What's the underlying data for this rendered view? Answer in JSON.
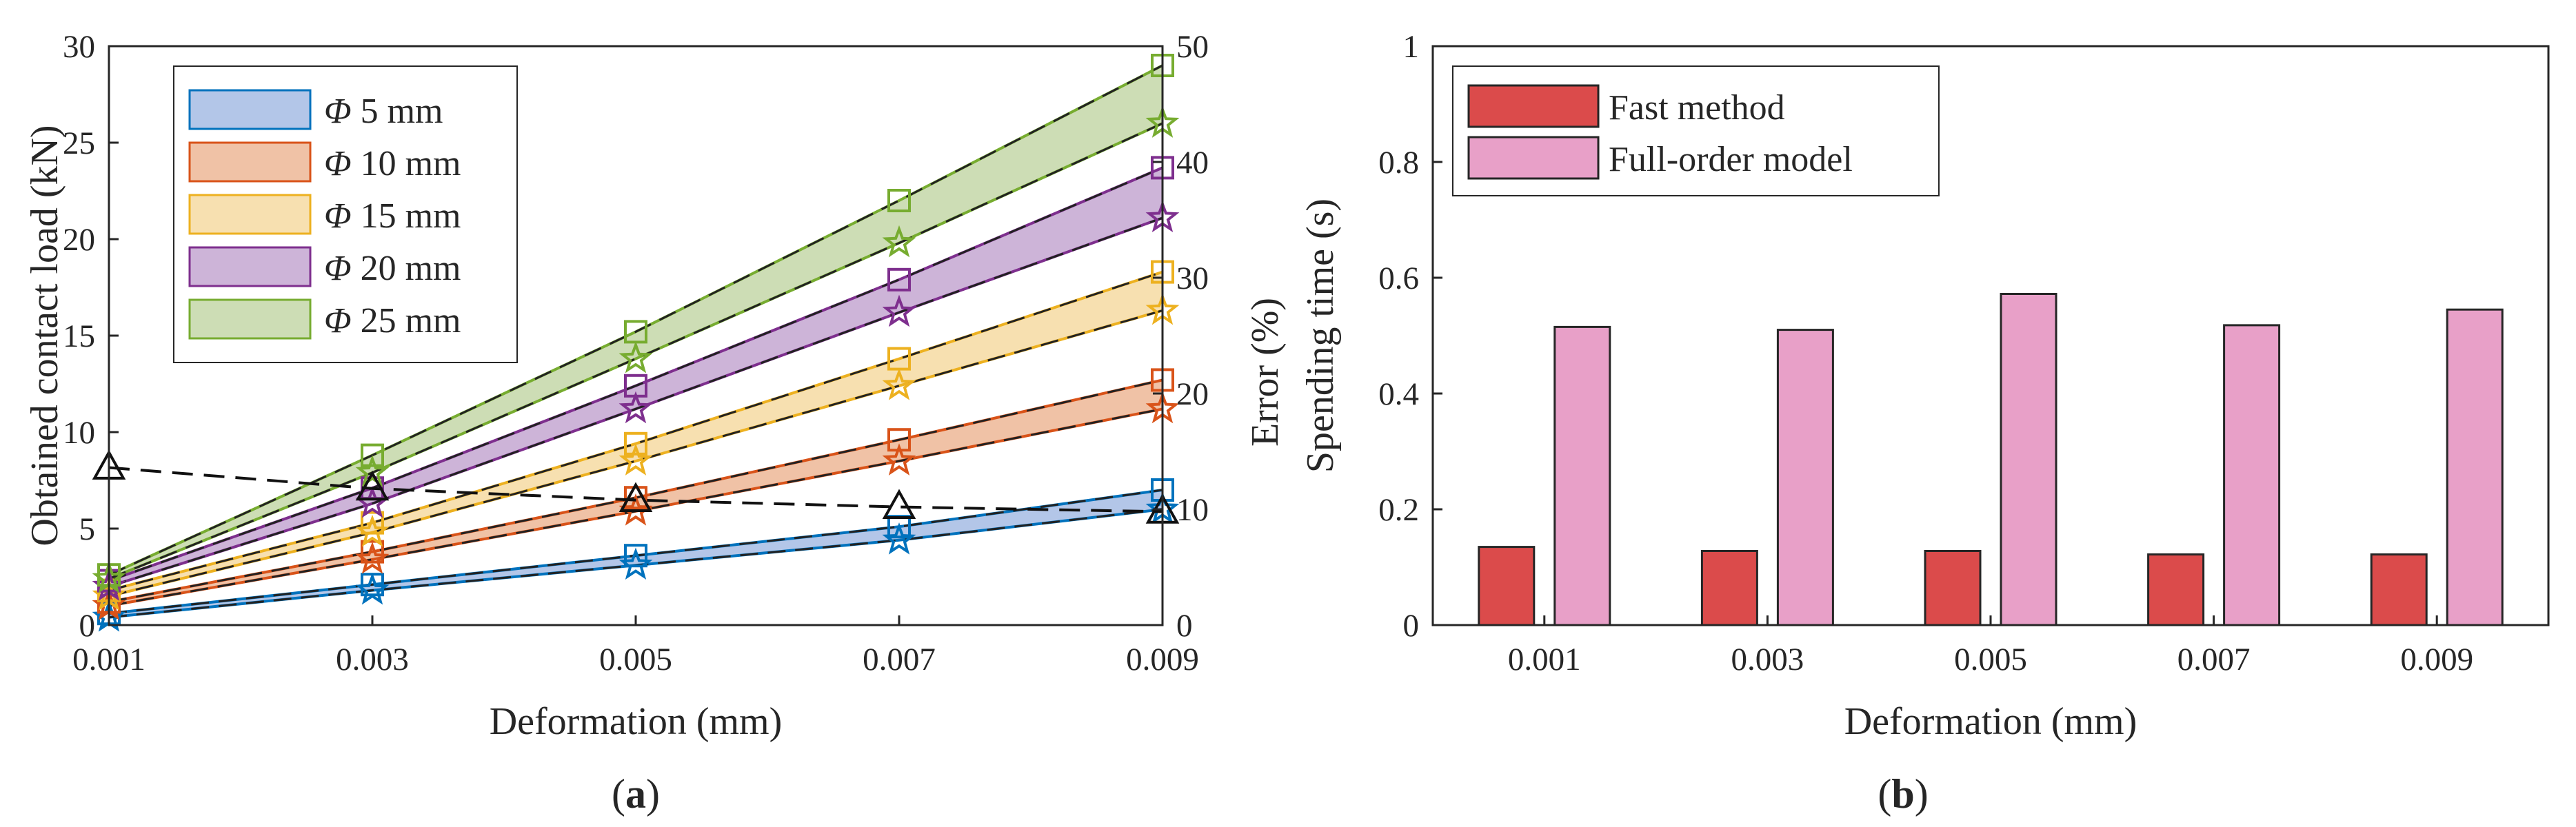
{
  "chart_data": [
    {
      "panel": "(a)",
      "type": "line",
      "xlabel": "Deformation (mm)",
      "ylabel": "Obtained contact load (kN)",
      "y2label": "",
      "x": [
        0.001,
        0.003,
        0.005,
        0.007,
        0.009
      ],
      "x_tick_labels": [
        "0.001",
        "0.003",
        "0.005",
        "0.007",
        "0.009"
      ],
      "ylim": [
        0,
        30
      ],
      "y_ticks": [
        0,
        5,
        10,
        15,
        20,
        25,
        30
      ],
      "y2lim": [
        0,
        50
      ],
      "y2_ticks": [
        0,
        10,
        20,
        30,
        40,
        50
      ],
      "legend_position": "top-left",
      "bands": [
        {
          "name": "Φ 5 mm",
          "symbol": "Φ",
          "size": " 5 mm",
          "color": "#0072BD",
          "fill": "#b3c6e8",
          "upper": [
            0.6,
            2.1,
            3.6,
            5.1,
            7.0
          ],
          "lower": [
            0.4,
            1.8,
            3.1,
            4.4,
            6.0
          ]
        },
        {
          "name": "Φ 10 mm",
          "symbol": "Φ",
          "size": " 10 mm",
          "color": "#D95319",
          "fill": "#f0c2a6",
          "upper": [
            1.2,
            3.8,
            6.6,
            9.6,
            12.7
          ],
          "lower": [
            1.0,
            3.4,
            5.9,
            8.5,
            11.2
          ]
        },
        {
          "name": "Φ 15 mm",
          "symbol": "Φ",
          "size": " 15 mm",
          "color": "#EDB120",
          "fill": "#f7e0b0",
          "upper": [
            1.8,
            5.3,
            9.4,
            13.8,
            18.3
          ],
          "lower": [
            1.5,
            4.8,
            8.5,
            12.4,
            16.3
          ]
        },
        {
          "name": "Φ 20 mm",
          "symbol": "Φ",
          "size": " 20 mm",
          "color": "#7E2F8E",
          "fill": "#cdb4d8",
          "upper": [
            2.3,
            7.1,
            12.4,
            17.9,
            23.7
          ],
          "lower": [
            2.0,
            6.3,
            11.2,
            16.2,
            21.1
          ]
        },
        {
          "name": "Φ 25 mm",
          "symbol": "Φ",
          "size": " 25 mm",
          "color": "#77AC30",
          "fill": "#cdddb5",
          "upper": [
            2.6,
            8.8,
            15.2,
            22.0,
            29.0
          ],
          "lower": [
            2.4,
            7.9,
            13.8,
            19.8,
            26.0
          ]
        }
      ],
      "error_series": {
        "name": "Error",
        "axis": "right",
        "style": "dashed-black-triangle",
        "values": [
          13.6,
          11.8,
          10.8,
          10.2,
          9.8
        ]
      },
      "markers": {
        "upper": "square",
        "lower": "star"
      }
    },
    {
      "panel": "(b)",
      "type": "bar",
      "xlabel": "Deformation (mm)",
      "ylabel_outer": "Error (%)",
      "ylabel_inner": "Spending time (s)",
      "categories": [
        "0.001",
        "0.003",
        "0.005",
        "0.007",
        "0.009"
      ],
      "ylim": [
        0,
        1
      ],
      "y_ticks": [
        0,
        0.2,
        0.4,
        0.6,
        0.8,
        1
      ],
      "y_tick_labels": [
        "0",
        "0.2",
        "0.4",
        "0.6",
        "0.8",
        "1"
      ],
      "legend_position": "top-left",
      "series": [
        {
          "name": "Fast method",
          "color": "#db4b4b",
          "values": [
            0.135,
            0.128,
            0.128,
            0.122,
            0.122
          ]
        },
        {
          "name": "Full-order model",
          "color": "#e8a0c8",
          "values": [
            0.515,
            0.51,
            0.572,
            0.518,
            0.545
          ]
        }
      ]
    }
  ]
}
